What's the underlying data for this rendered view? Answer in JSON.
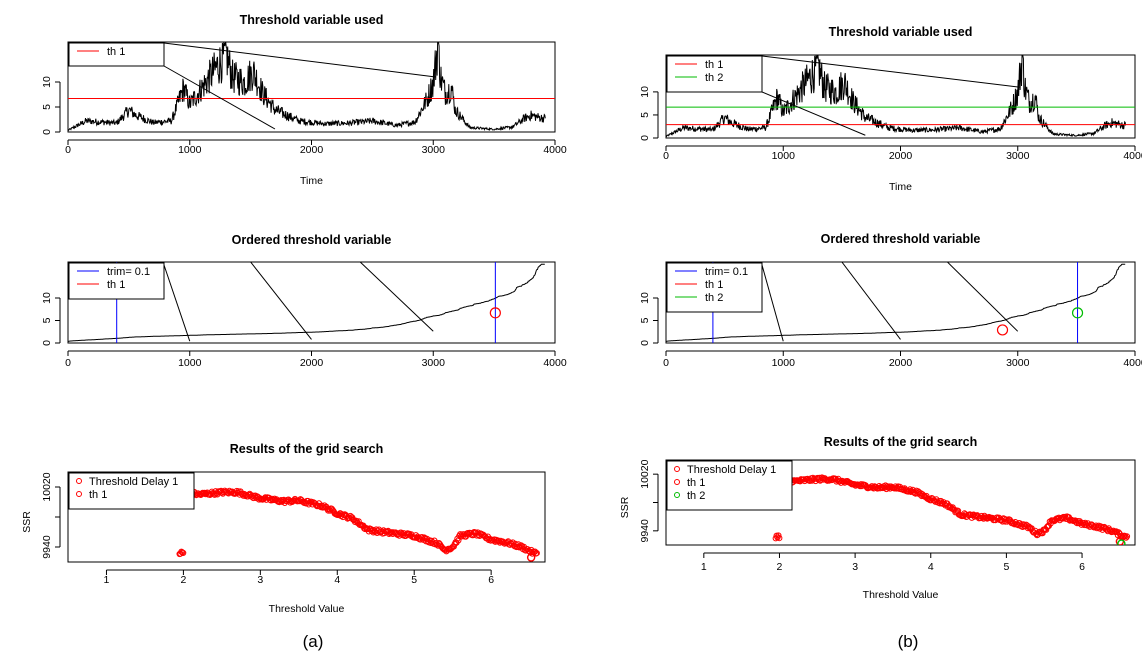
{
  "chart_data": [
    {
      "panel": "a",
      "type": "line",
      "title": "Threshold variable used",
      "xlabel": "Time",
      "ylabel": "",
      "xlim": [
        0,
        4000
      ],
      "ylim": [
        0,
        18
      ],
      "xticks": [
        0,
        1000,
        2000,
        3000,
        4000
      ],
      "yticks": [
        0,
        5,
        10
      ],
      "series": [
        {
          "color": "#000000",
          "peaks": [
            [
              0,
              0.3
            ],
            [
              150,
              2
            ],
            [
              400,
              1.6
            ],
            [
              500,
              4
            ],
            [
              560,
              3
            ],
            [
              700,
              1.7
            ],
            [
              850,
              2
            ],
            [
              950,
              8
            ],
            [
              1000,
              5
            ],
            [
              1100,
              8
            ],
            [
              1230,
              12
            ],
            [
              1300,
              14
            ],
            [
              1350,
              10
            ],
            [
              1450,
              9
            ],
            [
              1520,
              11
            ],
            [
              1600,
              7
            ],
            [
              1700,
              4
            ],
            [
              1800,
              3
            ],
            [
              1900,
              2
            ],
            [
              2100,
              1.5
            ],
            [
              2300,
              1.6
            ],
            [
              2500,
              2
            ],
            [
              2700,
              1.2
            ],
            [
              2850,
              1.8
            ],
            [
              2950,
              6
            ],
            [
              3000,
              9
            ],
            [
              3040,
              16
            ],
            [
              3060,
              10
            ],
            [
              3100,
              7
            ],
            [
              3150,
              8
            ],
            [
              3180,
              4
            ],
            [
              3300,
              0.8
            ],
            [
              3500,
              0.5
            ],
            [
              3650,
              0.9
            ],
            [
              3750,
              2.5
            ],
            [
              3800,
              3
            ],
            [
              3900,
              2.5
            ]
          ]
        }
      ],
      "hlines": [
        {
          "name": "th 1",
          "y": 6.7,
          "color": "#ff0000"
        }
      ],
      "legend": [
        {
          "label": "th 1",
          "color": "#ff0000",
          "kind": "line"
        }
      ],
      "legend_position": "top-left"
    },
    {
      "panel": "a",
      "type": "line",
      "title": "Ordered threshold variable",
      "xlabel": "",
      "ylabel": "",
      "xlim": [
        0,
        4000
      ],
      "ylim": [
        0,
        18
      ],
      "xticks": [
        0,
        1000,
        2000,
        3000,
        4000
      ],
      "yticks": [
        0,
        5,
        10
      ],
      "vlines": [
        {
          "x": 400,
          "color": "#0000ff"
        },
        {
          "x": 3510,
          "color": "#0000ff"
        }
      ],
      "marks": [
        {
          "x": 3510,
          "y": 6.7,
          "color": "#ff0000"
        }
      ],
      "legend": [
        {
          "label": "trim= 0.1",
          "color": "#0000ff",
          "kind": "line"
        },
        {
          "label": "th 1",
          "color": "#ff0000",
          "kind": "line"
        }
      ],
      "legend_position": "top-left"
    },
    {
      "panel": "a",
      "type": "scatter",
      "title": "Results of the grid search",
      "xlabel": "Threshold Value",
      "ylabel": "SSR",
      "xlim": [
        0.5,
        6.7
      ],
      "ylim": [
        9920,
        10040
      ],
      "xticks": [
        1,
        2,
        3,
        4,
        5,
        6
      ],
      "yticks": [
        9940,
        9980,
        10020
      ],
      "ytick_labels": [
        "9940",
        "",
        "10020"
      ],
      "trend": [
        [
          2.0,
          10014
        ],
        [
          2.2,
          10010
        ],
        [
          2.5,
          10013
        ],
        [
          2.7,
          10013
        ],
        [
          3.0,
          10005
        ],
        [
          3.3,
          10001
        ],
        [
          3.5,
          10002
        ],
        [
          3.8,
          9995
        ],
        [
          4.0,
          9985
        ],
        [
          4.2,
          9978
        ],
        [
          4.4,
          9963
        ],
        [
          4.6,
          9960
        ],
        [
          5.0,
          9955
        ],
        [
          5.3,
          9945
        ],
        [
          5.4,
          9936
        ],
        [
          5.5,
          9940
        ],
        [
          5.6,
          9955
        ],
        [
          5.8,
          9958
        ],
        [
          6.0,
          9950
        ],
        [
          6.2,
          9946
        ],
        [
          6.4,
          9940
        ],
        [
          6.55,
          9932
        ]
      ],
      "highlight": [
        {
          "label": "th 1",
          "x": 6.52,
          "y": 9926,
          "color": "#ff0000"
        }
      ],
      "legend": [
        {
          "label": "Threshold Delay 1",
          "color": "#ff0000",
          "kind": "point"
        },
        {
          "label": "th 1",
          "color": "#ff0000",
          "kind": "point"
        }
      ],
      "legend_position": "top-left"
    },
    {
      "panel": "b",
      "type": "line",
      "title": "Threshold variable used",
      "xlabel": "Time",
      "ylabel": "",
      "xlim": [
        0,
        4000
      ],
      "ylim": [
        0,
        18
      ],
      "xticks": [
        0,
        1000,
        2000,
        3000,
        4000
      ],
      "yticks": [
        0,
        5,
        10
      ],
      "hlines": [
        {
          "name": "th 1",
          "y": 2.9,
          "color": "#ff0000"
        },
        {
          "name": "th 2",
          "y": 6.7,
          "color": "#00bb00"
        }
      ],
      "legend": [
        {
          "label": "th 1",
          "color": "#ff0000",
          "kind": "line"
        },
        {
          "label": "th 2",
          "color": "#00bb00",
          "kind": "line"
        }
      ],
      "legend_position": "top-left"
    },
    {
      "panel": "b",
      "type": "line",
      "title": "Ordered threshold variable",
      "xlabel": "",
      "ylabel": "",
      "xlim": [
        0,
        4000
      ],
      "ylim": [
        0,
        18
      ],
      "xticks": [
        0,
        1000,
        2000,
        3000,
        4000
      ],
      "yticks": [
        0,
        5,
        10
      ],
      "vlines": [
        {
          "x": 400,
          "color": "#0000ff"
        },
        {
          "x": 3510,
          "color": "#0000ff"
        }
      ],
      "marks": [
        {
          "x": 2870,
          "y": 2.9,
          "color": "#ff0000"
        },
        {
          "x": 3510,
          "y": 6.7,
          "color": "#00bb00"
        }
      ],
      "legend": [
        {
          "label": "trim= 0.1",
          "color": "#0000ff",
          "kind": "line"
        },
        {
          "label": "th 1",
          "color": "#ff0000",
          "kind": "line"
        },
        {
          "label": "th 2",
          "color": "#00bb00",
          "kind": "line"
        }
      ],
      "legend_position": "top-left"
    },
    {
      "panel": "b",
      "type": "scatter",
      "title": "Results of the grid search",
      "xlabel": "Threshold Value",
      "ylabel": "SSR",
      "xlim": [
        0.5,
        6.7
      ],
      "ylim": [
        9920,
        10040
      ],
      "xticks": [
        1,
        2,
        3,
        4,
        5,
        6
      ],
      "yticks": [
        9940,
        9980,
        10020
      ],
      "ytick_labels": [
        "9940",
        "",
        "10020"
      ],
      "highlight": [
        {
          "label": "th 1",
          "x": 6.5,
          "y": 9925,
          "color": "#ff0000"
        },
        {
          "label": "th 2",
          "x": 6.52,
          "y": 9922,
          "color": "#00bb00"
        }
      ],
      "legend": [
        {
          "label": "Threshold Delay 1",
          "color": "#ff0000",
          "kind": "point"
        },
        {
          "label": "th 1",
          "color": "#ff0000",
          "kind": "point"
        },
        {
          "label": "th 2",
          "color": "#00bb00",
          "kind": "point"
        }
      ],
      "legend_position": "top-left"
    }
  ],
  "panel_labels": [
    "(a)",
    "(b)"
  ],
  "colors": {
    "series": "#000000",
    "th1": "#ff0000",
    "th2": "#00bb00",
    "trim": "#0000ff"
  }
}
